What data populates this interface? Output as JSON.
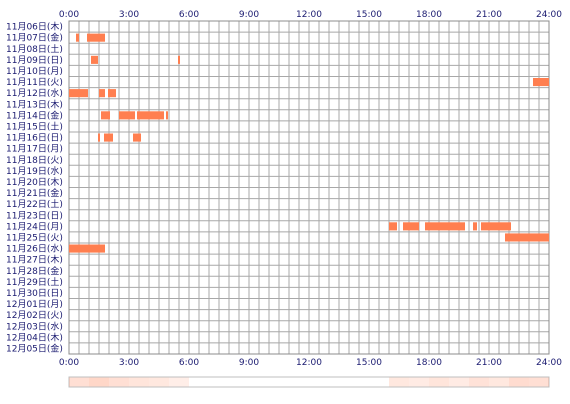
{
  "chart_data": {
    "type": "heatmap",
    "x_tick_labels": [
      "0:00",
      "3:00",
      "6:00",
      "9:00",
      "12:00",
      "15:00",
      "18:00",
      "21:00",
      "24:00"
    ],
    "x_range_hours": [
      0,
      24
    ],
    "rows": [
      "11月06日(木)",
      "11月07日(金)",
      "11月08日(土)",
      "11月09日(日)",
      "11月10日(月)",
      "11月11日(火)",
      "11月12日(水)",
      "11月13日(木)",
      "11月14日(金)",
      "11月15日(土)",
      "11月16日(日)",
      "11月17日(月)",
      "11月18日(火)",
      "11月19日(水)",
      "11月20日(木)",
      "11月21日(金)",
      "11月22日(土)",
      "11月23日(日)",
      "11月24日(月)",
      "11月25日(火)",
      "11月26日(水)",
      "11月27日(木)",
      "11月28日(金)",
      "11月29日(土)",
      "11月30日(日)",
      "12月01日(月)",
      "12月02日(火)",
      "12月03日(水)",
      "12月04日(木)",
      "12月05日(金)"
    ],
    "grid": true,
    "bar_color": "#ff7f50",
    "segments_hours": [
      [],
      [
        [
          0.35,
          0.5
        ],
        [
          0.9,
          1.8
        ]
      ],
      [],
      [
        [
          1.1,
          1.45
        ],
        [
          5.45,
          5.55
        ]
      ],
      [],
      [
        [
          23.2,
          24
        ]
      ],
      [
        [
          0,
          0.95
        ],
        [
          1.5,
          1.8
        ],
        [
          1.95,
          2.35
        ]
      ],
      [],
      [
        [
          1.6,
          2.05
        ],
        [
          2.5,
          3.3
        ],
        [
          3.4,
          4.75
        ],
        [
          4.85,
          4.95
        ]
      ],
      [],
      [
        [
          1.45,
          1.55
        ],
        [
          1.75,
          2.2
        ],
        [
          3.2,
          3.6
        ]
      ],
      [],
      [],
      [],
      [],
      [],
      [],
      [],
      [
        [
          16,
          16.4
        ],
        [
          16.7,
          17.5
        ],
        [
          17.8,
          19.8
        ],
        [
          20.2,
          20.4
        ],
        [
          20.6,
          22.1
        ]
      ],
      [
        [
          21.8,
          24
        ]
      ],
      [
        [
          0,
          1.8
        ]
      ],
      [],
      [],
      [],
      [],
      [],
      [],
      [],
      [],
      []
    ]
  },
  "summary_strip": {
    "hour_intensity": [
      0.55,
      0.7,
      0.55,
      0.45,
      0.4,
      0.3,
      0.0,
      0.0,
      0.0,
      0.0,
      0.0,
      0.0,
      0.0,
      0.0,
      0.0,
      0.0,
      0.4,
      0.35,
      0.45,
      0.35,
      0.5,
      0.4,
      0.6,
      0.55
    ],
    "base_color": "#ffffff",
    "accent_color": "#ff7f50",
    "border_color": "#bfbfbf"
  }
}
